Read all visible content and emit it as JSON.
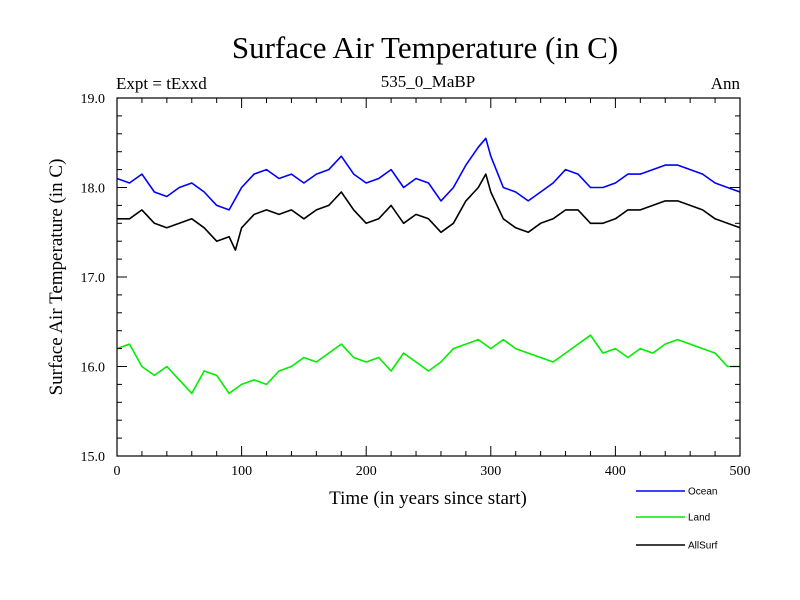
{
  "chart_data": {
    "type": "line",
    "title": "Surface Air Temperature (in C)",
    "left_label": "Expt = tExxd",
    "subtitle": "535_0_MaBP",
    "right_label": "Ann",
    "xlabel": "Time (in years since start)",
    "ylabel": "Surface Air Temperature (in C)",
    "xlim": [
      0,
      500
    ],
    "ylim": [
      15.0,
      19.0
    ],
    "x_ticks": [
      0,
      100,
      200,
      300,
      400,
      500
    ],
    "x_tick_labels": [
      "0",
      "100",
      "200",
      "300",
      "400",
      "500"
    ],
    "y_ticks": [
      15.0,
      16.0,
      17.0,
      18.0,
      19.0
    ],
    "y_tick_labels": [
      "15.0",
      "16.0",
      "17.0",
      "18.0",
      "19.0"
    ],
    "series": [
      {
        "name": "Ocean",
        "color": "#0000ff",
        "x": [
          0,
          10,
          20,
          30,
          40,
          50,
          60,
          70,
          80,
          90,
          100,
          110,
          120,
          130,
          140,
          150,
          160,
          170,
          180,
          190,
          200,
          210,
          220,
          230,
          240,
          250,
          260,
          270,
          280,
          290,
          296,
          300,
          310,
          320,
          330,
          340,
          350,
          360,
          370,
          380,
          390,
          400,
          410,
          420,
          430,
          440,
          450,
          460,
          470,
          480,
          490,
          500
        ],
        "values": [
          18.1,
          18.05,
          18.15,
          17.95,
          17.9,
          18.0,
          18.05,
          17.95,
          17.8,
          17.75,
          18.0,
          18.15,
          18.2,
          18.1,
          18.15,
          18.05,
          18.15,
          18.2,
          18.35,
          18.15,
          18.05,
          18.1,
          18.2,
          18.0,
          18.1,
          18.05,
          17.85,
          18.0,
          18.25,
          18.45,
          18.55,
          18.35,
          18.0,
          17.95,
          17.85,
          17.95,
          18.05,
          18.2,
          18.15,
          18.0,
          18.0,
          18.05,
          18.15,
          18.15,
          18.2,
          18.25,
          18.25,
          18.2,
          18.15,
          18.05,
          18.0,
          17.95
        ]
      },
      {
        "name": "Land",
        "color": "#00ee00",
        "x": [
          0,
          10,
          20,
          30,
          40,
          50,
          60,
          70,
          80,
          90,
          100,
          110,
          120,
          130,
          140,
          150,
          160,
          170,
          180,
          190,
          200,
          210,
          220,
          230,
          240,
          250,
          260,
          270,
          280,
          290,
          300,
          310,
          320,
          330,
          340,
          350,
          360,
          370,
          380,
          390,
          400,
          410,
          420,
          430,
          440,
          450,
          460,
          470,
          480,
          490,
          500
        ],
        "values": [
          16.2,
          16.25,
          16.0,
          15.9,
          16.0,
          15.85,
          15.7,
          15.95,
          15.9,
          15.7,
          15.8,
          15.85,
          15.8,
          15.95,
          16.0,
          16.1,
          16.05,
          16.15,
          16.25,
          16.1,
          16.05,
          16.1,
          15.95,
          16.15,
          16.05,
          15.95,
          16.05,
          16.2,
          16.25,
          16.3,
          16.2,
          16.3,
          16.2,
          16.15,
          16.1,
          16.05,
          16.15,
          16.25,
          16.35,
          16.15,
          16.2,
          16.1,
          16.2,
          16.15,
          16.25,
          16.3,
          16.25,
          16.2,
          16.15,
          16.0,
          16.0
        ]
      },
      {
        "name": "AllSurf",
        "color": "#000000",
        "x": [
          0,
          10,
          20,
          30,
          40,
          50,
          60,
          70,
          80,
          90,
          95,
          100,
          110,
          120,
          130,
          140,
          150,
          160,
          170,
          180,
          190,
          200,
          210,
          220,
          230,
          240,
          250,
          260,
          270,
          280,
          290,
          296,
          300,
          310,
          320,
          330,
          340,
          350,
          360,
          370,
          380,
          390,
          400,
          410,
          420,
          430,
          440,
          450,
          460,
          470,
          480,
          490,
          500
        ],
        "values": [
          17.65,
          17.65,
          17.75,
          17.6,
          17.55,
          17.6,
          17.65,
          17.55,
          17.4,
          17.45,
          17.3,
          17.55,
          17.7,
          17.75,
          17.7,
          17.75,
          17.65,
          17.75,
          17.8,
          17.95,
          17.75,
          17.6,
          17.65,
          17.8,
          17.6,
          17.7,
          17.65,
          17.5,
          17.6,
          17.85,
          18.0,
          18.15,
          17.95,
          17.65,
          17.55,
          17.5,
          17.6,
          17.65,
          17.75,
          17.75,
          17.6,
          17.6,
          17.65,
          17.75,
          17.75,
          17.8,
          17.85,
          17.85,
          17.8,
          17.75,
          17.65,
          17.6,
          17.55
        ]
      }
    ],
    "legend_position": "bottom-right"
  }
}
